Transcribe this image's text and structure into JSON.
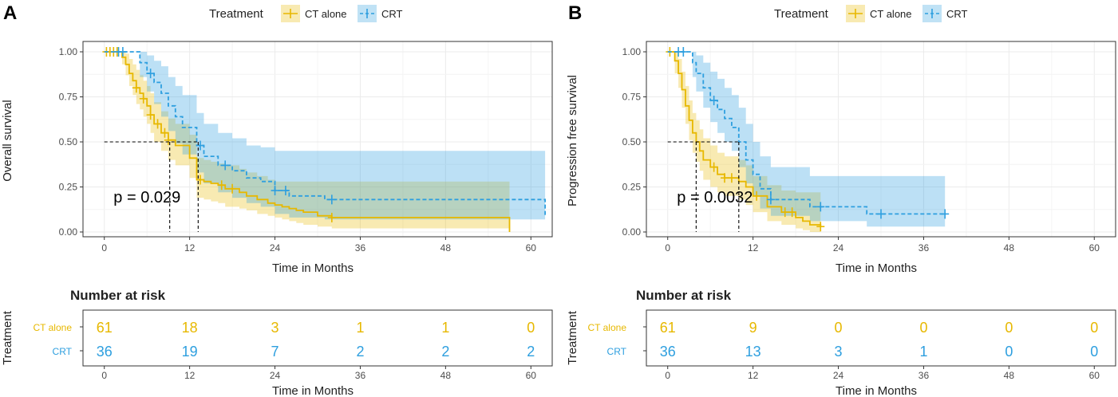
{
  "colors": {
    "ct": "#E7B800",
    "crt": "#2E9FDF",
    "grid": "#EBEBEB",
    "axis": "#333333"
  },
  "legend": {
    "title": "Treatment",
    "ct_label": "CT alone",
    "crt_label": "CRT"
  },
  "risk": {
    "title": "Number at risk",
    "ytitle": "Treatment",
    "row_labels": [
      "CT alone",
      "CRT"
    ]
  },
  "chart_data": [
    {
      "type": "line",
      "panel_label": "A",
      "title": "",
      "xlabel": "Time in Months",
      "ylabel": "Overall survival",
      "xlim": [
        -3,
        63
      ],
      "ylim": [
        0,
        1
      ],
      "x_ticks": [
        "0",
        "12",
        "24",
        "36",
        "48",
        "60"
      ],
      "y_ticks": [
        "0.00",
        "0.25",
        "0.50",
        "0.75",
        "1.00"
      ],
      "p_value": "p = 0.029",
      "median_lines": {
        "y": 0.5,
        "ct_x": 9.2,
        "crt_x": 13.2
      },
      "series": [
        {
          "name": "CT alone",
          "x": [
            0,
            2.5,
            3.0,
            3.5,
            4.0,
            4.5,
            5.0,
            5.5,
            6.0,
            6.5,
            7.0,
            8.0,
            9.0,
            10.0,
            12.0,
            13.0,
            14.0,
            15.0,
            16.0,
            17.0,
            19.0,
            20.0,
            21.5,
            23.0,
            24.0,
            25.0,
            26.0,
            27.0,
            28.0,
            30.0,
            32.0,
            57.0
          ],
          "y": [
            1.0,
            0.97,
            0.93,
            0.88,
            0.84,
            0.8,
            0.77,
            0.74,
            0.7,
            0.65,
            0.6,
            0.55,
            0.51,
            0.48,
            0.41,
            0.29,
            0.28,
            0.27,
            0.26,
            0.24,
            0.22,
            0.2,
            0.18,
            0.16,
            0.15,
            0.14,
            0.13,
            0.12,
            0.11,
            0.09,
            0.08,
            0.0
          ],
          "lower": [
            1.0,
            0.93,
            0.87,
            0.81,
            0.76,
            0.71,
            0.68,
            0.64,
            0.6,
            0.55,
            0.5,
            0.45,
            0.4,
            0.37,
            0.3,
            0.19,
            0.18,
            0.17,
            0.16,
            0.14,
            0.13,
            0.12,
            0.1,
            0.09,
            0.08,
            0.07,
            0.06,
            0.05,
            0.04,
            0.03,
            0.02,
            0.0
          ],
          "upper": [
            1.0,
            1.0,
            0.99,
            0.96,
            0.93,
            0.9,
            0.87,
            0.84,
            0.81,
            0.77,
            0.72,
            0.67,
            0.63,
            0.6,
            0.54,
            0.41,
            0.4,
            0.39,
            0.38,
            0.37,
            0.35,
            0.33,
            0.31,
            0.29,
            0.28,
            0.28,
            0.28,
            0.28,
            0.28,
            0.28,
            0.28,
            0.28
          ],
          "censor_x": [
            0.3,
            0.8,
            1.3,
            1.8,
            4.5,
            5.5,
            6.5,
            7.5,
            8.5,
            9.0,
            13.5,
            16.5,
            18.0,
            32.0
          ]
        },
        {
          "name": "CRT",
          "x": [
            0,
            5.0,
            6.0,
            7.0,
            8.0,
            9.0,
            10.0,
            11.0,
            13.0,
            14.0,
            16.0,
            18.0,
            20.0,
            22.0,
            24.0,
            26.0,
            31.0,
            62.0
          ],
          "y": [
            1.0,
            0.94,
            0.88,
            0.83,
            0.77,
            0.7,
            0.64,
            0.58,
            0.48,
            0.42,
            0.37,
            0.34,
            0.3,
            0.28,
            0.23,
            0.2,
            0.18,
            0.09
          ],
          "lower": [
            1.0,
            0.86,
            0.78,
            0.71,
            0.64,
            0.56,
            0.49,
            0.43,
            0.33,
            0.27,
            0.22,
            0.19,
            0.16,
            0.14,
            0.1,
            0.08,
            0.07,
            0.02
          ],
          "upper": [
            1.0,
            1.0,
            0.98,
            0.95,
            0.92,
            0.86,
            0.81,
            0.76,
            0.66,
            0.6,
            0.55,
            0.52,
            0.48,
            0.47,
            0.45,
            0.45,
            0.45,
            0.45
          ],
          "censor_x": [
            2.0,
            2.6,
            6.5,
            13.5,
            17.0,
            24.0,
            25.5,
            32.0
          ]
        }
      ],
      "risk_table": {
        "times": [
          "0",
          "12",
          "24",
          "36",
          "48",
          "60"
        ],
        "ct": [
          "61",
          "18",
          "3",
          "1",
          "1",
          "0"
        ],
        "crt": [
          "36",
          "19",
          "7",
          "2",
          "2",
          "2"
        ]
      }
    },
    {
      "type": "line",
      "panel_label": "B",
      "title": "",
      "xlabel": "Time in Months",
      "ylabel": "Progression free survival",
      "xlim": [
        -3,
        63
      ],
      "ylim": [
        0,
        1
      ],
      "x_ticks": [
        "0",
        "12",
        "24",
        "36",
        "48",
        "60"
      ],
      "y_ticks": [
        "0.00",
        "0.25",
        "0.50",
        "0.75",
        "1.00"
      ],
      "p_value": "p = 0.0032",
      "median_lines": {
        "y": 0.5,
        "ct_x": 4.0,
        "crt_x": 10.0
      },
      "series": [
        {
          "name": "CT alone",
          "x": [
            0,
            1.0,
            1.5,
            2.0,
            2.5,
            3.0,
            3.5,
            4.0,
            4.5,
            5.0,
            6.0,
            7.0,
            8.0,
            10.0,
            11.0,
            12.0,
            14.0,
            16.0,
            18.0,
            19.0,
            20.0,
            21.5
          ],
          "y": [
            1.0,
            0.95,
            0.88,
            0.79,
            0.7,
            0.62,
            0.55,
            0.5,
            0.45,
            0.4,
            0.36,
            0.32,
            0.3,
            0.28,
            0.25,
            0.2,
            0.14,
            0.11,
            0.08,
            0.06,
            0.04,
            0.03
          ],
          "lower": [
            1.0,
            0.88,
            0.8,
            0.69,
            0.6,
            0.51,
            0.44,
            0.39,
            0.34,
            0.29,
            0.25,
            0.22,
            0.2,
            0.18,
            0.15,
            0.11,
            0.06,
            0.04,
            0.02,
            0.01,
            0.0,
            0.0
          ],
          "upper": [
            1.0,
            1.0,
            0.96,
            0.89,
            0.81,
            0.73,
            0.66,
            0.62,
            0.57,
            0.52,
            0.48,
            0.44,
            0.42,
            0.4,
            0.37,
            0.31,
            0.26,
            0.23,
            0.22,
            0.22,
            0.22,
            0.22
          ],
          "censor_x": [
            0.3,
            6.5,
            8.0,
            9.0,
            12.5,
            16.5,
            17.5,
            21.5
          ]
        },
        {
          "name": "CRT",
          "x": [
            0,
            3.5,
            4.0,
            5.0,
            6.0,
            7.0,
            8.0,
            9.0,
            10.0,
            11.0,
            12.0,
            13.0,
            14.5,
            20.0,
            28.0,
            39.0
          ],
          "y": [
            1.0,
            0.94,
            0.88,
            0.8,
            0.73,
            0.68,
            0.63,
            0.58,
            0.5,
            0.4,
            0.32,
            0.24,
            0.18,
            0.14,
            0.1,
            0.1
          ],
          "lower": [
            1.0,
            0.86,
            0.78,
            0.69,
            0.61,
            0.55,
            0.5,
            0.45,
            0.36,
            0.27,
            0.2,
            0.13,
            0.09,
            0.06,
            0.03,
            0.03
          ],
          "upper": [
            1.0,
            1.0,
            0.98,
            0.94,
            0.89,
            0.85,
            0.8,
            0.76,
            0.69,
            0.6,
            0.5,
            0.42,
            0.36,
            0.31,
            0.31,
            0.31
          ],
          "censor_x": [
            1.5,
            2.2,
            6.5,
            14.5,
            21.5,
            30.0,
            39.0
          ]
        }
      ],
      "risk_table": {
        "times": [
          "0",
          "12",
          "24",
          "36",
          "48",
          "60"
        ],
        "ct": [
          "61",
          "9",
          "0",
          "0",
          "0",
          "0"
        ],
        "crt": [
          "36",
          "13",
          "3",
          "1",
          "0",
          "0"
        ]
      }
    }
  ]
}
